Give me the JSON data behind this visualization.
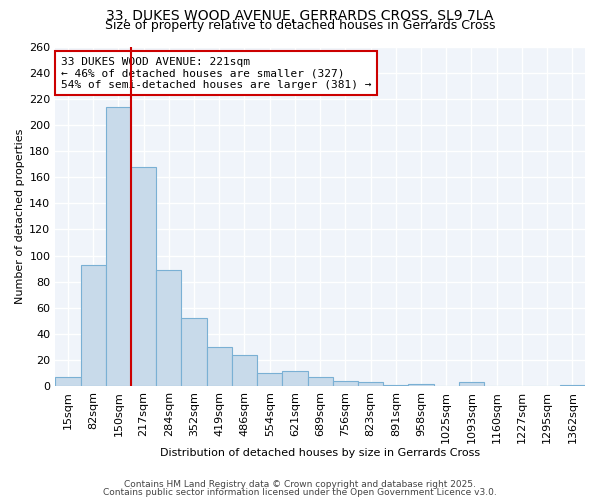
{
  "title_line1": "33, DUKES WOOD AVENUE, GERRARDS CROSS, SL9 7LA",
  "title_line2": "Size of property relative to detached houses in Gerrards Cross",
  "xlabel": "Distribution of detached houses by size in Gerrards Cross",
  "ylabel": "Number of detached properties",
  "categories": [
    "15sqm",
    "82sqm",
    "150sqm",
    "217sqm",
    "284sqm",
    "352sqm",
    "419sqm",
    "486sqm",
    "554sqm",
    "621sqm",
    "689sqm",
    "756sqm",
    "823sqm",
    "891sqm",
    "958sqm",
    "1025sqm",
    "1093sqm",
    "1160sqm",
    "1227sqm",
    "1295sqm",
    "1362sqm"
  ],
  "values": [
    7,
    93,
    214,
    168,
    89,
    52,
    30,
    24,
    10,
    12,
    7,
    4,
    3,
    1,
    2,
    0,
    3,
    0,
    0,
    0,
    1
  ],
  "bar_color": "#c8daea",
  "bar_edge_color": "#7ab0d4",
  "vline_color": "#cc0000",
  "vline_bar_index": 3,
  "annotation_text": "33 DUKES WOOD AVENUE: 221sqm\n← 46% of detached houses are smaller (327)\n54% of semi-detached houses are larger (381) →",
  "annotation_box_facecolor": "#ffffff",
  "annotation_box_edgecolor": "#cc0000",
  "ylim": [
    0,
    260
  ],
  "yticks": [
    0,
    20,
    40,
    60,
    80,
    100,
    120,
    140,
    160,
    180,
    200,
    220,
    240,
    260
  ],
  "footer_line1": "Contains HM Land Registry data © Crown copyright and database right 2025.",
  "footer_line2": "Contains public sector information licensed under the Open Government Licence v3.0.",
  "bg_color": "#ffffff",
  "plot_bg_color": "#f0f4fa",
  "grid_color": "#ffffff",
  "title_fontsize": 10,
  "subtitle_fontsize": 9,
  "axis_label_fontsize": 8,
  "tick_fontsize": 8,
  "annotation_fontsize": 8,
  "footer_fontsize": 6.5
}
